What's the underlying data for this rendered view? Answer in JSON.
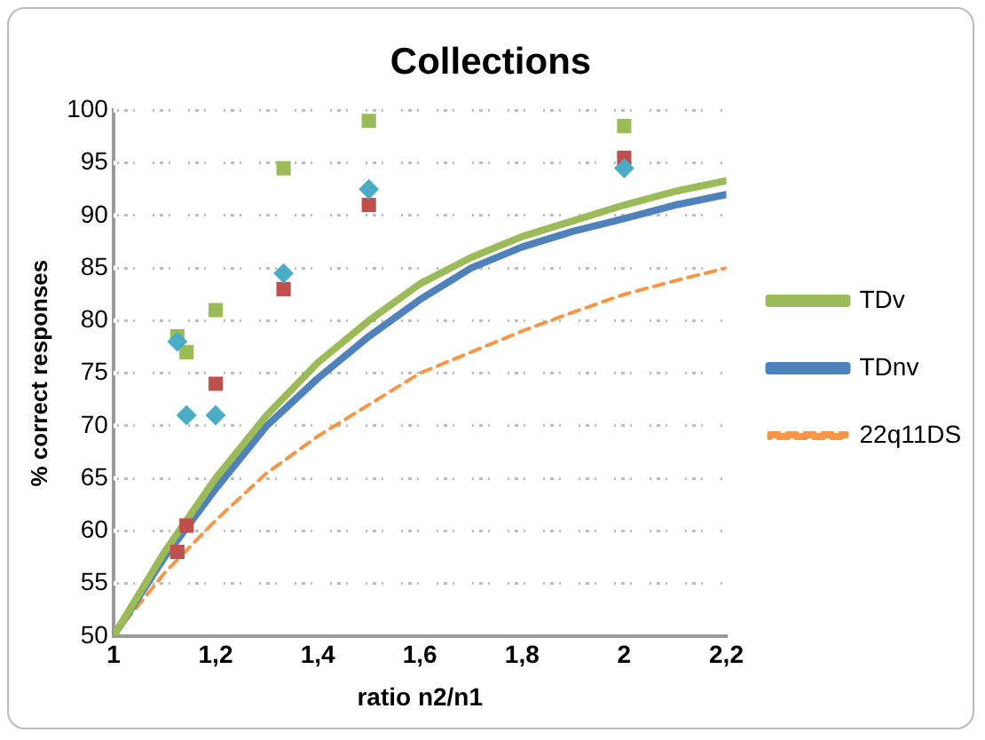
{
  "chart_data": {
    "type": "line",
    "title": "Collections",
    "xlabel": "ratio n2/n1",
    "ylabel": "% correct responses",
    "xlim": [
      1,
      2.2
    ],
    "xticks": [
      1,
      {
        "value": 1.2,
        "label": "1,2"
      },
      {
        "value": 1.4,
        "label": "1,4"
      },
      {
        "value": 1.6,
        "label": "1,6"
      },
      {
        "value": 1.8,
        "label": "1,8"
      },
      2,
      {
        "value": 2.2,
        "label": "2,2"
      }
    ],
    "ylim": [
      50,
      100
    ],
    "yticks": [
      50,
      55,
      60,
      65,
      70,
      75,
      80,
      85,
      90,
      95,
      100
    ],
    "grid": "y",
    "legend": "right",
    "marker": "none",
    "series": [
      {
        "name": "TDv",
        "color": "#9bbb59",
        "x": [
          1,
          1.1,
          1.2,
          1.3,
          1.4,
          1.5,
          1.6,
          1.7,
          1.8,
          1.9,
          2,
          2.1,
          2.2
        ],
        "values": [
          50,
          58,
          65,
          71,
          76,
          80,
          83.5,
          86,
          88,
          89.5,
          91,
          92.3,
          93.3
        ]
      },
      {
        "name": "TDnv",
        "color": "#4f81bd",
        "x": [
          1,
          1.1,
          1.2,
          1.3,
          1.4,
          1.5,
          1.6,
          1.7,
          1.8,
          1.9,
          2,
          2.1,
          2.2
        ],
        "values": [
          50,
          57.5,
          64,
          70,
          74.5,
          78.5,
          82,
          85,
          87,
          88.5,
          89.7,
          91,
          92
        ]
      },
      {
        "name": "22q11DS",
        "color": "#f79646",
        "line_style": "dashed",
        "x": [
          1,
          1.1,
          1.2,
          1.3,
          1.4,
          1.5,
          1.6,
          1.7,
          1.8,
          1.9,
          2,
          2.1,
          2.2
        ],
        "values": [
          50,
          56,
          61,
          65.5,
          69,
          72,
          75,
          77,
          79,
          80.8,
          82.5,
          83.8,
          85
        ]
      },
      {
        "type": "scatter",
        "marker": "square",
        "color": "#9bbb59",
        "x": [
          1.125,
          1.143,
          1.2,
          1.333,
          1.5,
          2
        ],
        "values": [
          78.5,
          77,
          81,
          94.5,
          99,
          98.5
        ]
      },
      {
        "type": "scatter",
        "marker": "diamond",
        "color": "#4bacc6",
        "x": [
          1.125,
          1.143,
          1.2,
          1.333,
          1.5,
          2
        ],
        "values": [
          78,
          71,
          71,
          84.5,
          92.5,
          94.5
        ]
      },
      {
        "type": "scatter",
        "marker": "square",
        "color": "#c0504d",
        "x": [
          1.125,
          1.143,
          1.2,
          1.333,
          1.5,
          2
        ],
        "values": [
          58,
          60.5,
          74,
          83,
          91,
          95.5
        ]
      }
    ]
  }
}
